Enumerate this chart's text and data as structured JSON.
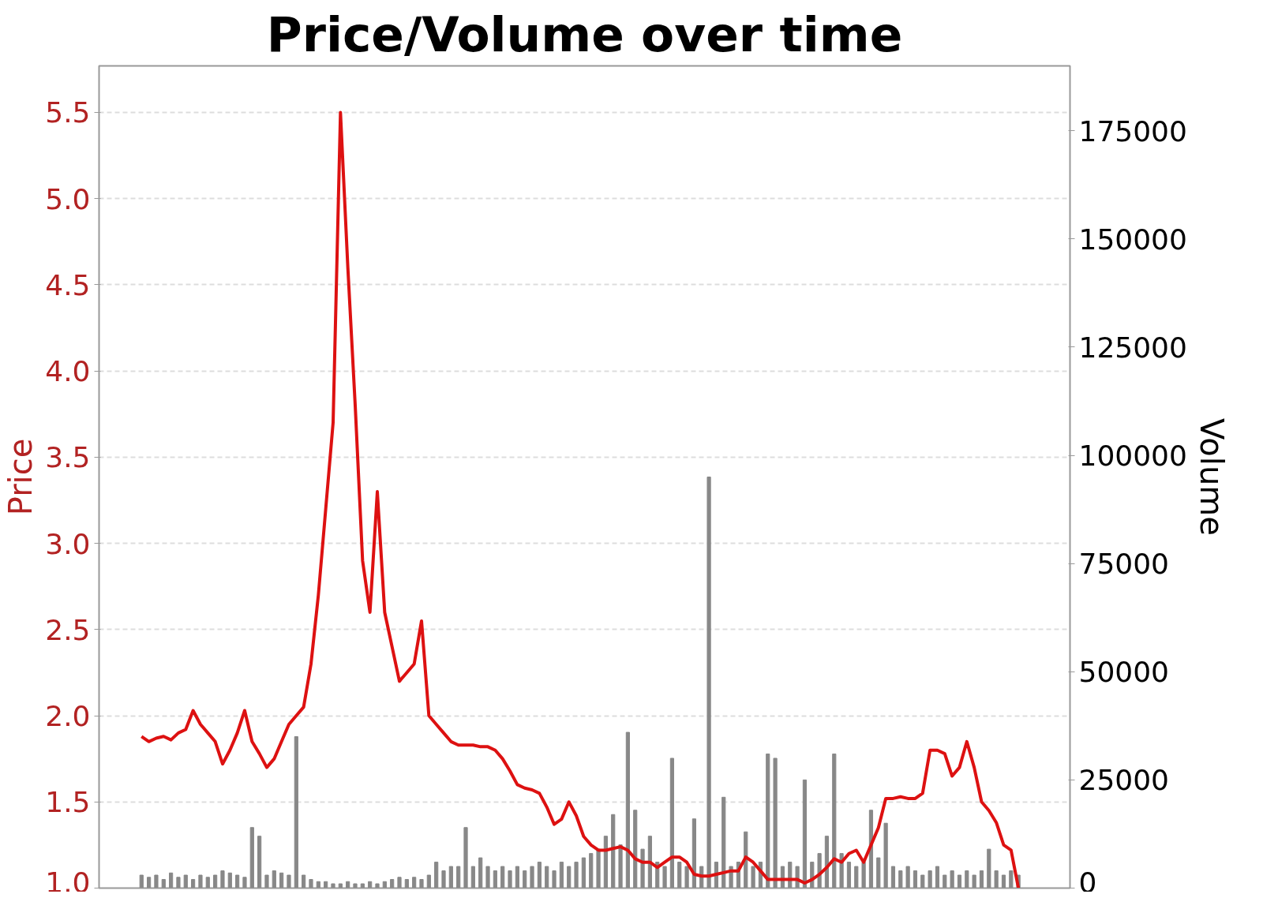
{
  "chart_data": {
    "type": "line",
    "title": "Price/Volume over time",
    "ylabel": "Price",
    "y2label": "Volume",
    "categories": [
      null,
      null,
      null,
      null,
      null,
      null,
      null,
      null,
      null,
      null,
      null,
      null,
      null,
      null,
      null,
      null,
      null,
      null,
      null,
      null,
      null,
      null,
      null,
      null,
      null,
      null,
      null,
      null,
      null,
      null,
      null,
      null,
      null,
      null,
      null,
      null,
      null,
      null,
      null,
      null,
      null,
      null,
      null,
      null,
      null,
      null,
      null,
      null,
      null,
      null,
      null,
      null,
      null,
      null,
      null,
      null,
      null,
      null,
      null,
      null,
      null,
      null,
      null,
      null,
      null,
      null,
      null,
      null,
      null,
      null,
      null,
      null,
      null,
      null,
      null,
      null,
      null,
      null,
      null,
      null,
      null,
      null,
      null,
      null,
      null,
      null,
      null,
      null,
      null,
      null,
      null,
      null,
      null,
      null,
      null,
      null,
      null,
      null,
      null,
      null,
      null,
      null,
      null,
      null,
      null,
      null,
      null,
      null,
      null,
      null,
      null,
      null,
      null,
      null,
      null,
      null,
      null,
      null,
      null,
      null
    ],
    "series": [
      {
        "type": "bar",
        "axis": "y2",
        "color": "#888888",
        "values": [
          3000,
          2500,
          3000,
          2000,
          3500,
          2500,
          3000,
          2000,
          3000,
          2500,
          3000,
          4000,
          3500,
          3000,
          2500,
          14000,
          12000,
          3000,
          4000,
          3500,
          3000,
          35000,
          3000,
          2000,
          1500,
          1500,
          1000,
          1000,
          1500,
          1000,
          1000,
          1500,
          1000,
          1500,
          2000,
          2500,
          2000,
          2500,
          2000,
          3000,
          6000,
          4000,
          5000,
          5000,
          14000,
          5000,
          7000,
          5000,
          4000,
          5000,
          4000,
          5000,
          4000,
          5000,
          6000,
          5000,
          4000,
          6000,
          5000,
          6000,
          7000,
          8000,
          9000,
          12000,
          17000,
          10000,
          36000,
          18000,
          9000,
          12000,
          6000,
          5000,
          30000,
          6000,
          5000,
          16000,
          5000,
          95000,
          6000,
          21000,
          5000,
          6000,
          13000,
          5000,
          6000,
          31000,
          30000,
          5000,
          6000,
          5000,
          25000,
          6000,
          8000,
          12000,
          31000,
          8000,
          6000,
          5000,
          6000,
          18000,
          7000,
          15000,
          5000,
          4000,
          5000,
          4000,
          3000,
          4000,
          5000,
          3000,
          4000,
          3000,
          4000,
          3000,
          4000,
          9000,
          4000,
          3000,
          4000,
          3000
        ]
      },
      {
        "axis": "y",
        "color": "#dd1111",
        "values": [
          1.88,
          1.85,
          1.87,
          1.88,
          1.86,
          1.9,
          1.92,
          2.03,
          1.95,
          1.9,
          1.85,
          1.72,
          1.8,
          1.9,
          2.03,
          1.85,
          1.78,
          1.7,
          1.75,
          1.85,
          1.95,
          2.0,
          2.05,
          2.3,
          2.7,
          3.2,
          3.7,
          5.5,
          4.6,
          3.8,
          2.9,
          2.6,
          3.3,
          2.6,
          2.4,
          2.2,
          2.25,
          2.3,
          2.55,
          2.0,
          1.95,
          1.9,
          1.85,
          1.83,
          1.83,
          1.83,
          1.82,
          1.82,
          1.8,
          1.75,
          1.68,
          1.6,
          1.58,
          1.57,
          1.55,
          1.47,
          1.37,
          1.4,
          1.5,
          1.42,
          1.3,
          1.25,
          1.22,
          1.22,
          1.23,
          1.24,
          1.22,
          1.17,
          1.15,
          1.15,
          1.12,
          1.15,
          1.18,
          1.18,
          1.15,
          1.08,
          1.07,
          1.07,
          1.08,
          1.09,
          1.1,
          1.1,
          1.18,
          1.15,
          1.1,
          1.05,
          1.05,
          1.05,
          1.05,
          1.05,
          1.03,
          1.05,
          1.08,
          1.12,
          1.17,
          1.15,
          1.2,
          1.22,
          1.15,
          1.25,
          1.35,
          1.52,
          1.52,
          1.53,
          1.52,
          1.52,
          1.55,
          1.8,
          1.8,
          1.78,
          1.65,
          1.7,
          1.85,
          1.7,
          1.5,
          1.45,
          1.38,
          1.25,
          1.22,
          1.0
        ]
      }
    ],
    "ylim": [
      1.0,
      5.77
    ],
    "yticks": [
      {
        "value": 1.0,
        "label": "1.0"
      },
      1.5,
      {
        "value": 2.0,
        "label": "2.0"
      },
      2.5,
      {
        "value": 3.0,
        "label": "3.0"
      },
      3.5,
      {
        "value": 4.0,
        "label": "4.0"
      },
      4.5,
      {
        "value": 5.0,
        "label": "5.0"
      },
      5.5
    ],
    "y2lim": [
      0,
      190000
    ],
    "y2ticks": [
      0,
      25000,
      50000,
      75000,
      100000,
      125000,
      150000,
      175000
    ],
    "grid": "y",
    "tick_labels": "y",
    "line_style": "solid"
  }
}
